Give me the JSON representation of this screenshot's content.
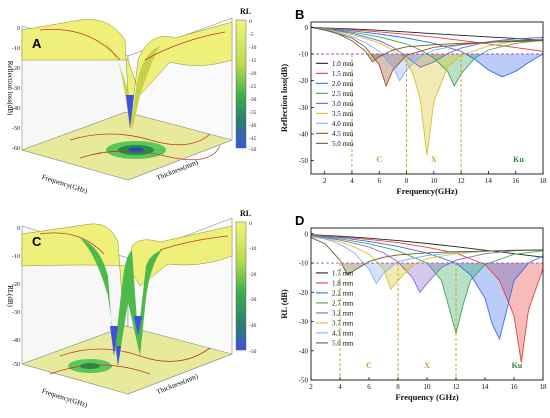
{
  "colors": {
    "surface_yellow": "#eef07a",
    "surface_dark": "#c9d14a",
    "surface_green": "#4fb84a",
    "dip_blue": "#3b52e0",
    "band_dashed": "#c89a2a",
    "threshold": "#b048c8"
  },
  "panel_a": {
    "letter": "A",
    "ylabel": "Reflection loss(dB)",
    "xlabel": "Frequency(GHz)",
    "zlabel": "Thickness(mm)",
    "z_ticks": [
      "0",
      "-10",
      "-20",
      "-30",
      "-40",
      "-50",
      "-60"
    ],
    "colorbar": {
      "title": "RL",
      "ticks": [
        "0",
        "-5",
        "-10",
        "-15",
        "-20",
        "-25",
        "-30",
        "-35",
        "-40",
        "-45",
        "-50"
      ]
    }
  },
  "panel_c": {
    "letter": "C",
    "ylabel": "RL(dB)",
    "xlabel": "Frequency(GHz)",
    "zlabel": "Thickness(mm)",
    "z_ticks": [
      "0",
      "-10",
      "-20",
      "-30",
      "-40",
      "-50"
    ],
    "colorbar": {
      "title": "RL",
      "ticks": [
        "0",
        "-10",
        "-20",
        "-30",
        "-40",
        "-50"
      ]
    }
  },
  "chart_data": [
    {
      "type": "line",
      "panel": "B",
      "xlabel": "Frequency(GHz)",
      "ylabel": "Reflection loss(dB)",
      "xlim": [
        1,
        18
      ],
      "ylim": [
        -55,
        2
      ],
      "xticks": [
        2,
        4,
        6,
        8,
        10,
        12,
        14,
        16,
        18
      ],
      "yticks": [
        0,
        -10,
        -20,
        -30,
        -40,
        -50
      ],
      "threshold": -10,
      "band_lines": [
        4,
        8,
        12
      ],
      "band_labels": [
        "C",
        "X",
        "Ku"
      ],
      "legend_position": "left",
      "series": [
        {
          "name": "1.0 mm",
          "color": "#222222",
          "x": [
            1,
            2,
            4,
            6,
            8,
            10,
            12,
            14,
            16,
            18
          ],
          "y": [
            0,
            -0.2,
            -0.6,
            -1.1,
            -1.7,
            -2.4,
            -3.0,
            -3.6,
            -4.2,
            -4.8
          ]
        },
        {
          "name": "1.5 mm",
          "color": "#e8403a",
          "x": [
            1,
            2,
            4,
            6,
            8,
            10,
            12,
            14,
            16,
            18
          ],
          "y": [
            0,
            -0.3,
            -0.9,
            -1.7,
            -2.6,
            -3.7,
            -4.9,
            -6.2,
            -7.6,
            -9.0
          ]
        },
        {
          "name": "2.0 mm",
          "color": "#3a6ee8",
          "x": [
            1,
            2,
            4,
            6,
            8,
            10,
            12,
            13,
            14,
            15,
            16,
            17,
            18
          ],
          "y": [
            0,
            -0.4,
            -1.3,
            -2.5,
            -4.0,
            -6.0,
            -9.0,
            -12.0,
            -16.0,
            -18.5,
            -16.5,
            -13.0,
            -10.0
          ]
        },
        {
          "name": "2.5 mm",
          "color": "#3aa85a",
          "x": [
            1,
            2,
            4,
            6,
            8,
            9,
            10,
            11,
            11.5,
            12,
            13,
            14,
            16,
            18
          ],
          "y": [
            0,
            -0.5,
            -1.8,
            -3.6,
            -6.2,
            -8.5,
            -11.5,
            -16.5,
            -22.0,
            -17.5,
            -11.5,
            -8.5,
            -6.0,
            -4.8
          ]
        },
        {
          "name": "3.0 mm",
          "color": "#6666cc",
          "x": [
            1,
            2,
            4,
            6,
            7,
            8,
            9,
            10,
            11,
            12,
            14,
            16,
            18
          ],
          "y": [
            0,
            -0.6,
            -2.2,
            -5.0,
            -7.4,
            -11.0,
            -15.0,
            -13.0,
            -9.8,
            -7.8,
            -5.4,
            -4.3,
            -3.8
          ]
        },
        {
          "name": "3.5 mm",
          "color": "#d6c42a",
          "x": [
            1,
            2,
            4,
            6,
            7,
            8,
            8.5,
            9,
            9.5,
            10,
            11,
            12,
            14,
            16,
            18
          ],
          "y": [
            0,
            -0.7,
            -2.7,
            -5.8,
            -8.5,
            -13.0,
            -18.0,
            -27.0,
            -48.0,
            -28.0,
            -15.0,
            -10.5,
            -7.0,
            -5.2,
            -4.4
          ]
        },
        {
          "name": "4.0 mm",
          "color": "#7fb0ff",
          "x": [
            1,
            2,
            4,
            5,
            6,
            7,
            7.5,
            8,
            9,
            10,
            12,
            14,
            16,
            18
          ],
          "y": [
            0,
            -0.8,
            -3.4,
            -5.8,
            -9.0,
            -15.0,
            -20.0,
            -16.0,
            -11.0,
            -8.5,
            -6.6,
            -5.5,
            -4.9,
            -4.6
          ]
        },
        {
          "name": "4.5 mm",
          "color": "#9a4a2a",
          "x": [
            1,
            2,
            4,
            5,
            6,
            6.5,
            7,
            8,
            10,
            12,
            14,
            16,
            18
          ],
          "y": [
            0,
            -0.9,
            -4.0,
            -7.5,
            -14.0,
            -22.0,
            -16.0,
            -10.5,
            -7.5,
            -6.4,
            -5.6,
            -5.0,
            -4.7
          ]
        },
        {
          "name": "5.0 mm",
          "color": "#6a5f2a",
          "x": [
            1,
            2,
            3,
            4,
            5,
            5.5,
            6,
            7,
            8,
            10,
            12,
            14,
            16,
            18
          ],
          "y": [
            0,
            -1.0,
            -2.5,
            -5.0,
            -9.0,
            -13.0,
            -11.0,
            -8.5,
            -7.3,
            -6.5,
            -6.0,
            -5.6,
            -5.3,
            -5.0
          ]
        }
      ]
    },
    {
      "type": "line",
      "panel": "D",
      "xlabel": "Frequency (GHz)",
      "ylabel": "RL (dB)",
      "xlim": [
        2,
        18
      ],
      "ylim": [
        -50,
        2
      ],
      "xticks": [
        2,
        4,
        6,
        8,
        10,
        12,
        14,
        16,
        18
      ],
      "yticks": [
        0,
        -10,
        -20,
        -30,
        -40,
        -50
      ],
      "threshold": -10,
      "band_lines": [
        4,
        8,
        12
      ],
      "band_labels": [
        "C",
        "X",
        "Ku"
      ],
      "legend_position": "left",
      "series": [
        {
          "name": "1.7 mm",
          "color": "#222222",
          "x": [
            2,
            4,
            6,
            8,
            10,
            12,
            14,
            16,
            18
          ],
          "y": [
            -0.3,
            -0.8,
            -1.5,
            -2.3,
            -3.3,
            -4.4,
            -5.6,
            -6.8,
            -8.0
          ]
        },
        {
          "name": "1.8 mm",
          "color": "#e8403a",
          "x": [
            2,
            4,
            6,
            8,
            10,
            12,
            14,
            15,
            16,
            16.5,
            17,
            18
          ],
          "y": [
            -0.4,
            -1.0,
            -1.9,
            -3.0,
            -4.6,
            -6.6,
            -10.5,
            -16.0,
            -28.0,
            -44.0,
            -26.0,
            -12.0
          ]
        },
        {
          "name": "2.2 mm",
          "color": "#3a6ee8",
          "x": [
            2,
            4,
            6,
            8,
            10,
            12,
            13,
            14,
            14.5,
            15,
            15.5,
            16,
            17,
            18
          ],
          "y": [
            -0.5,
            -1.3,
            -2.6,
            -4.3,
            -6.6,
            -10.0,
            -14.0,
            -22.0,
            -31.0,
            -36.0,
            -26.0,
            -16.0,
            -10.0,
            -7.5
          ]
        },
        {
          "name": "2.7 mm",
          "color": "#3aa85a",
          "x": [
            2,
            4,
            6,
            8,
            10,
            11,
            11.5,
            12,
            12.5,
            13,
            14,
            16,
            18
          ],
          "y": [
            -0.6,
            -1.7,
            -3.4,
            -5.8,
            -10.0,
            -16.0,
            -25.0,
            -34.0,
            -24.0,
            -16.0,
            -10.5,
            -7.0,
            -5.8
          ]
        },
        {
          "name": "3.2 mm",
          "color": "#8866cc",
          "x": [
            2,
            4,
            6,
            7,
            8,
            9,
            9.5,
            10,
            11,
            12,
            14,
            16,
            18
          ],
          "y": [
            -0.7,
            -2.1,
            -4.5,
            -6.5,
            -9.6,
            -15.0,
            -20.0,
            -17.0,
            -11.5,
            -9.0,
            -6.8,
            -5.8,
            -5.3
          ]
        },
        {
          "name": "3.7 mm",
          "color": "#d6c42a",
          "x": [
            2,
            4,
            5,
            6,
            7,
            7.5,
            8,
            9,
            10,
            12,
            14,
            16,
            18
          ],
          "y": [
            -0.8,
            -2.7,
            -4.5,
            -7.0,
            -12.0,
            -19.0,
            -16.0,
            -10.8,
            -8.5,
            -6.8,
            -6.0,
            -5.5,
            -5.3
          ]
        },
        {
          "name": "4.3 mm",
          "color": "#7fb0ff",
          "x": [
            2,
            3,
            4,
            5,
            6,
            6.5,
            7,
            8,
            10,
            12,
            14,
            16,
            18
          ],
          "y": [
            -1.0,
            -1.8,
            -3.5,
            -6.6,
            -12.0,
            -17.0,
            -13.5,
            -9.5,
            -7.4,
            -6.4,
            -5.9,
            -5.6,
            -5.4
          ]
        },
        {
          "name": "5.0 mm",
          "color": "#6a5f2a",
          "x": [
            2,
            3,
            4,
            4.5,
            5,
            6,
            7,
            8,
            10,
            12,
            14,
            16,
            18
          ],
          "y": [
            -1.2,
            -3.5,
            -9.0,
            -14.0,
            -12.5,
            -9.5,
            -8.0,
            -7.2,
            -6.5,
            -6.1,
            -5.9,
            -5.7,
            -5.6
          ]
        }
      ]
    }
  ]
}
